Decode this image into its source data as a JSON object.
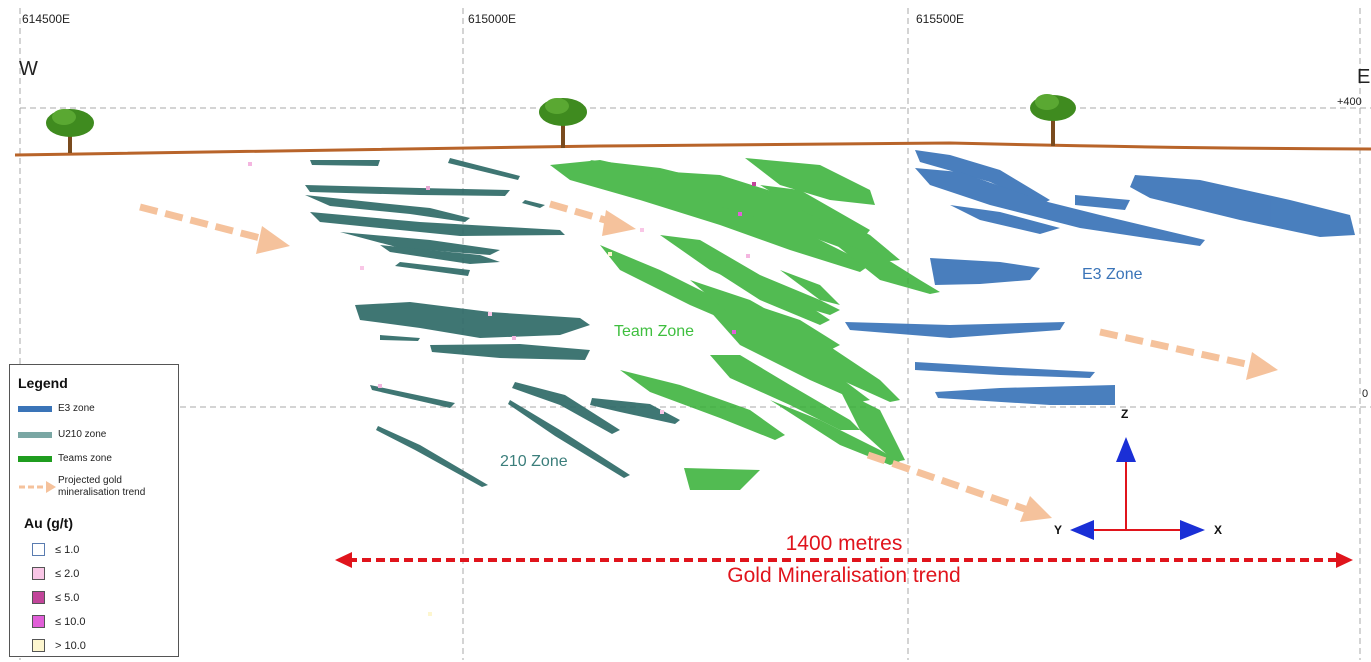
{
  "coordinates": [
    "614500E",
    "615000E",
    "615500E"
  ],
  "directions": {
    "west": "W",
    "east": "E"
  },
  "elevations": {
    "top": "+400",
    "bottom": "0"
  },
  "zones": {
    "team": "Team  Zone",
    "e3": "E3 Zone",
    "z210": "210 Zone"
  },
  "axes": {
    "z": "Z",
    "y": "Y",
    "x": "X"
  },
  "scale": {
    "distance": "1400 metres",
    "trend": "Gold Mineralisation trend"
  },
  "legend": {
    "title": "Legend",
    "items": [
      {
        "label": "E3 zone",
        "color": "#3a74b8"
      },
      {
        "label": "U210 zone",
        "color": "#7aa7a4"
      },
      {
        "label": "Teams zone",
        "color": "#2ca12c"
      },
      {
        "label": "Projected gold mineralisation trend",
        "color": "#f5c29c"
      }
    ],
    "au_title": "Au (g/t)",
    "au_items": [
      {
        "label": "≤ 1.0",
        "color": "#ffffff"
      },
      {
        "label": "≤ 2.0",
        "color": "#f9c6e6"
      },
      {
        "label": "≤ 5.0",
        "color": "#c2459a"
      },
      {
        "label": "≤ 10.0",
        "color": "#e15fd8"
      },
      {
        "label": "> 10.0",
        "color": "#fdf6cf"
      }
    ]
  },
  "colors": {
    "e3": "#3a74b8",
    "u210": "#2f6b68",
    "teams": "#35b035",
    "trend_arrow": "#f5c29c",
    "ground": "#b8642a",
    "scale_arrow": "#e0141c"
  }
}
